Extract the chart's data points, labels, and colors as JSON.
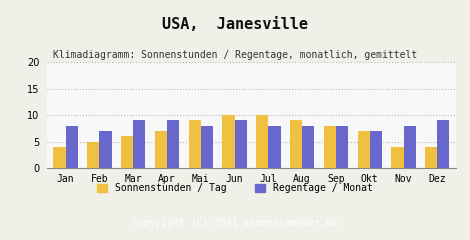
{
  "title": "USA,  Janesville",
  "subtitle": "Klimadiagramm: Sonnenstunden / Regentage, monatlich, gemittelt",
  "months": [
    "Jan",
    "Feb",
    "Mar",
    "Apr",
    "Mai",
    "Jun",
    "Jul",
    "Aug",
    "Sep",
    "Okt",
    "Nov",
    "Dez"
  ],
  "sonnenstunden": [
    4,
    5,
    6,
    7,
    9,
    10,
    10,
    9,
    8,
    7,
    4,
    4
  ],
  "regentage": [
    8,
    7,
    9,
    9,
    8,
    9,
    8,
    8,
    8,
    7,
    8,
    9
  ],
  "bar_color_sun": "#f0c040",
  "bar_color_rain": "#6868cc",
  "background_color": "#f0f0e8",
  "plot_bg_color": "#f8f8f8",
  "footer_bg": "#a8a8a8",
  "footer_text": "Copyright (C) 2011 sonnenlaender.de",
  "footer_text_color": "#ffffff",
  "ylim": [
    0,
    20
  ],
  "yticks": [
    0,
    5,
    10,
    15,
    20
  ],
  "legend_label_sun": "Sonnenstunden / Tag",
  "legend_label_rain": "Regentage / Monat",
  "title_fontsize": 11,
  "subtitle_fontsize": 7,
  "tick_fontsize": 7,
  "legend_fontsize": 7,
  "footer_fontsize": 7
}
